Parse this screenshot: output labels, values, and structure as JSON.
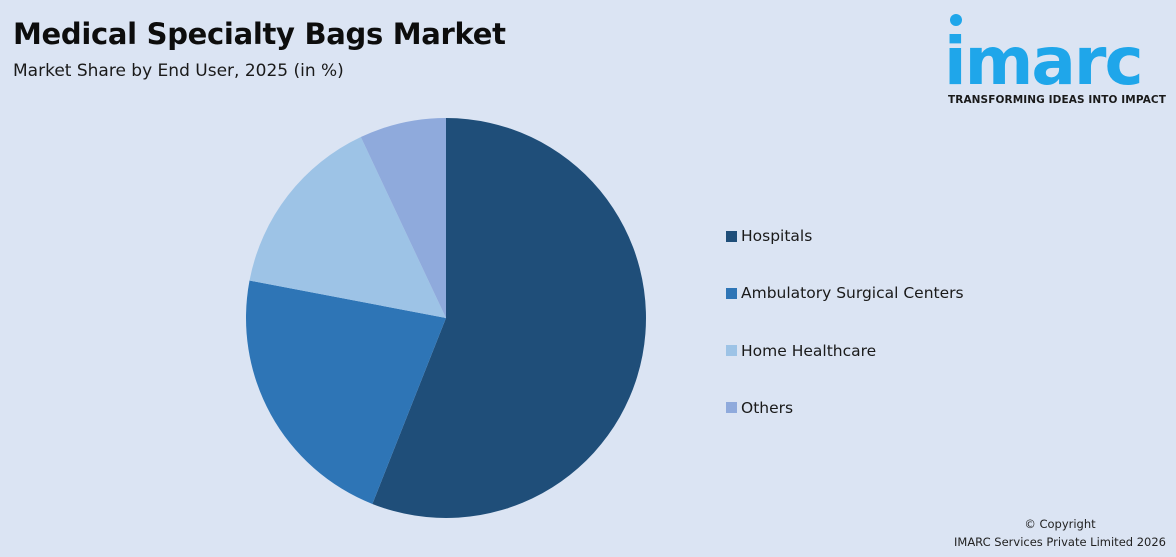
{
  "header": {
    "title": "Medical Specialty Bags Market",
    "subtitle": "Market Share by End User, 2025 (in %)"
  },
  "logo": {
    "wordmark": "imarc",
    "tagline": "TRANSFORMING IDEAS INTO IMPACT",
    "color": "#1fa6ea"
  },
  "legend": {
    "items": [
      {
        "label": "Hospitals",
        "color": "#1f4e79"
      },
      {
        "label": "Ambulatory Surgical Centers",
        "color": "#2e75b6"
      },
      {
        "label": "Home Healthcare",
        "color": "#9dc3e6"
      },
      {
        "label": "Others",
        "color": "#8faadc"
      }
    ]
  },
  "footer": {
    "copyright_line1": "© Copyright",
    "copyright_line2": "IMARC Services Private Limited 2026"
  },
  "chart_data": {
    "type": "pie",
    "title": "Medical Specialty Bags Market",
    "subtitle": "Market Share by End User, 2025 (in %)",
    "categories": [
      "Hospitals",
      "Ambulatory Surgical Centers",
      "Home Healthcare",
      "Others"
    ],
    "values": [
      56,
      22,
      15,
      7
    ],
    "colors": [
      "#1f4e79",
      "#2e75b6",
      "#9dc3e6",
      "#8faadc"
    ],
    "start_angle": "12 o'clock, clockwise",
    "legend_position": "right",
    "data_labels": false
  }
}
